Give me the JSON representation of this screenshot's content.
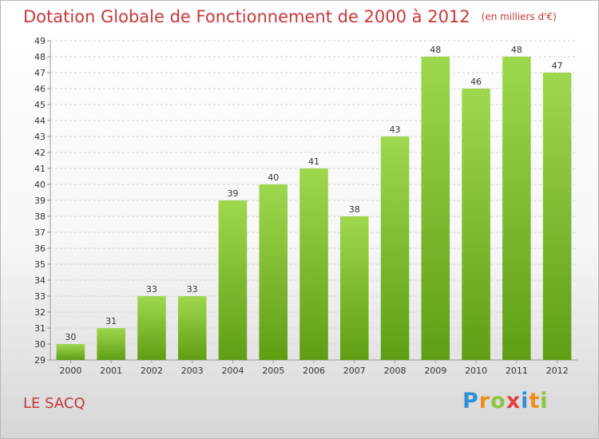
{
  "title": "Dotation Globale de Fonctionnement de 2000 à 2012",
  "subtitle": "(en milliers d'€)",
  "commune": "LE SACQ",
  "logo": {
    "letters": [
      "P",
      "r",
      "o",
      "x",
      "i",
      "t",
      "i"
    ],
    "colors": [
      "#2f8fd8",
      "#f08c1a",
      "#8cc63f",
      "#e2403c",
      "#2f8fd8",
      "#f08c1a",
      "#8cc63f"
    ]
  },
  "colors": {
    "bar_top": "#9fd84f",
    "bar_bottom": "#5f9e14",
    "title": "#c8383a"
  },
  "chart_data": {
    "type": "bar",
    "title": "Dotation Globale de Fonctionnement de 2000 à 2012",
    "subtitle": "(en milliers d'€)",
    "categories": [
      "2000",
      "2001",
      "2002",
      "2003",
      "2004",
      "2005",
      "2006",
      "2007",
      "2008",
      "2009",
      "2010",
      "2011",
      "2012"
    ],
    "values": [
      30,
      31,
      33,
      33,
      39,
      40,
      41,
      38,
      43,
      48,
      46,
      48,
      47
    ],
    "ylim": [
      29,
      49
    ],
    "yticks": [
      29,
      30,
      31,
      32,
      33,
      34,
      35,
      36,
      37,
      38,
      39,
      40,
      41,
      42,
      43,
      44,
      45,
      46,
      47,
      48,
      49
    ],
    "grid": true
  }
}
